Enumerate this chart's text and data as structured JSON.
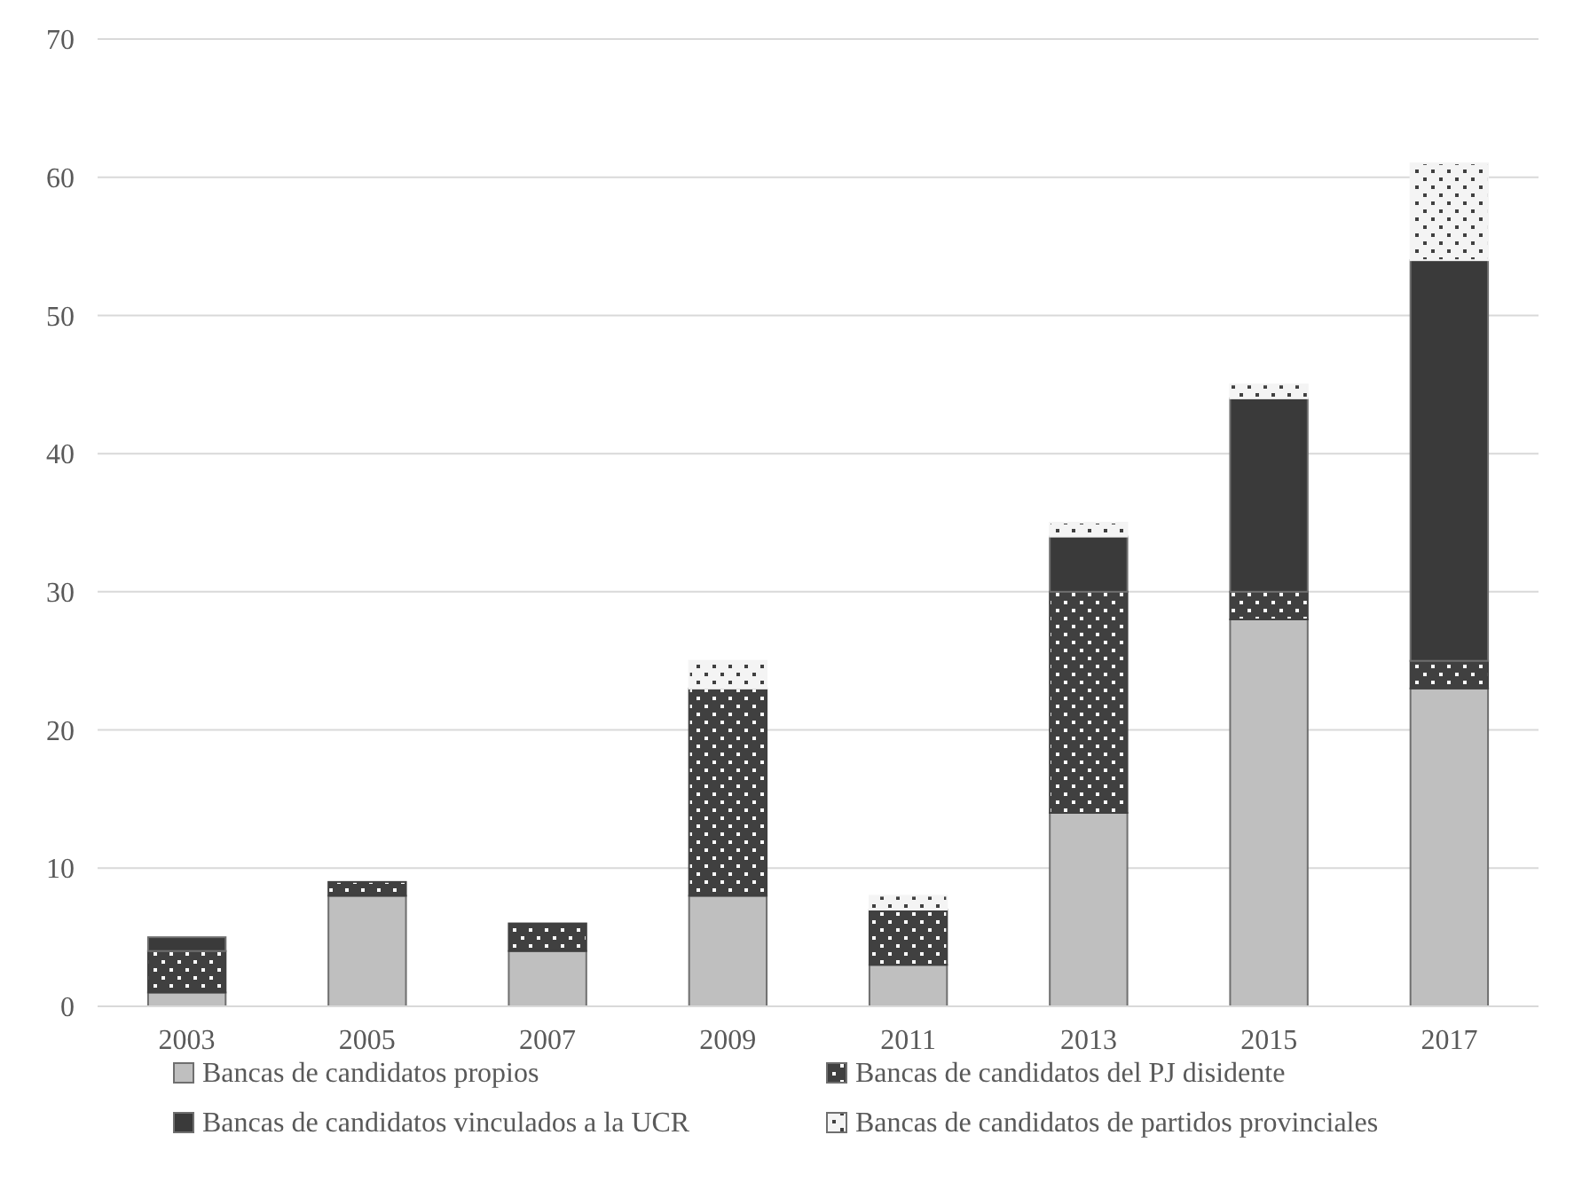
{
  "chart_data": {
    "type": "bar",
    "stacked": true,
    "categories": [
      "2003",
      "2005",
      "2007",
      "2009",
      "2011",
      "2013",
      "2015",
      "2017"
    ],
    "series": [
      {
        "name": "Bancas de candidatos propios",
        "color": "#bfbfbf",
        "values": [
          1,
          8,
          4,
          8,
          3,
          14,
          28,
          23
        ]
      },
      {
        "name": "Bancas de candidatos del PJ disidente",
        "color": "#404040",
        "values": [
          3,
          1,
          2,
          15,
          4,
          16,
          2,
          2
        ]
      },
      {
        "name": "Bancas de candidatos vinculados a la UCR",
        "color": "#3a3a3a",
        "values": [
          1,
          0,
          0,
          0,
          0,
          4,
          14,
          29
        ]
      },
      {
        "name": "Bancas de candidatos de partidos provinciales",
        "color": "#f4f4f4",
        "values": [
          0,
          0,
          0,
          2,
          1,
          1,
          1,
          7
        ]
      }
    ],
    "ylim": [
      0,
      70
    ],
    "yticks": [
      0,
      10,
      20,
      30,
      40,
      50,
      60,
      70
    ],
    "grid": "y",
    "legend": "bottom"
  }
}
